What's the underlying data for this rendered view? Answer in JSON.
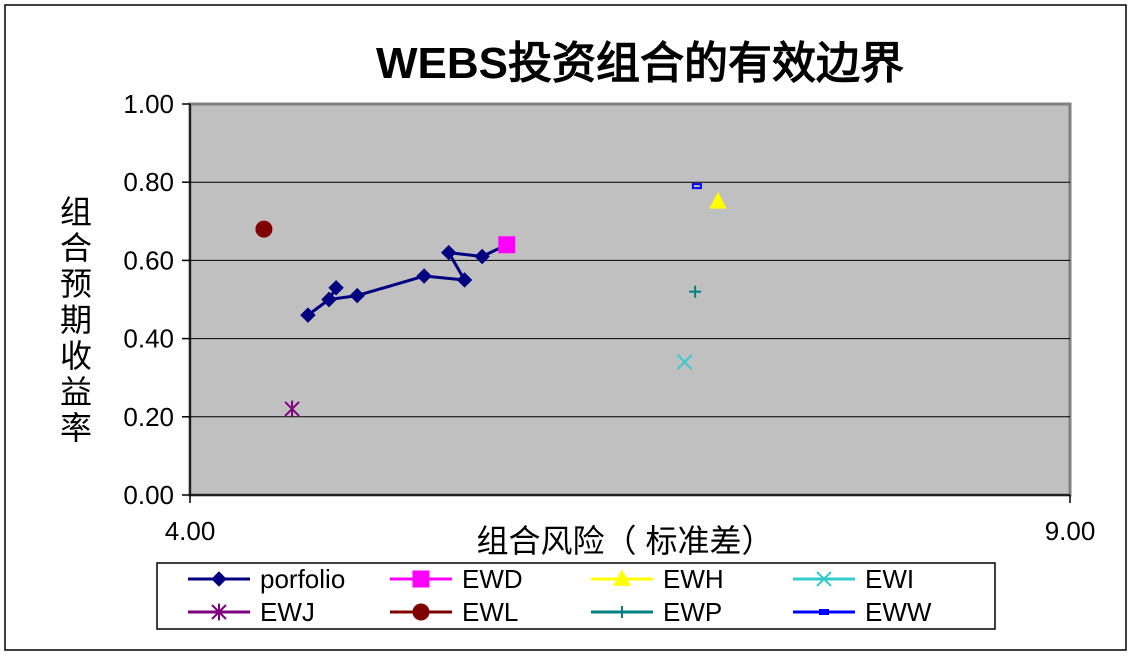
{
  "chart_data": {
    "type": "scatter",
    "title": "WEBS投资组合的有效边界",
    "xlabel": "组合风险（ 标准差）",
    "ylabel": "组合预期收益率",
    "xlim": [
      4.0,
      9.0
    ],
    "ylim": [
      0.0,
      1.0
    ],
    "x_tick_labels": [
      "4.00",
      "9.00"
    ],
    "y_tick_labels": [
      "0.00",
      "0.20",
      "0.40",
      "0.60",
      "0.80",
      "1.00"
    ],
    "grid": true,
    "legend_position": "bottom",
    "plot_background": "#c0c0c0",
    "series": [
      {
        "name": "porfolio",
        "kind": "line",
        "marker": "diamond",
        "color": "#000080",
        "points": [
          [
            4.67,
            0.46
          ],
          [
            4.79,
            0.5
          ],
          [
            4.83,
            0.53
          ],
          [
            4.79,
            0.5
          ],
          [
            4.95,
            0.51
          ],
          [
            5.33,
            0.56
          ],
          [
            5.56,
            0.55
          ],
          [
            5.47,
            0.62
          ],
          [
            5.66,
            0.61
          ],
          [
            5.8,
            0.64
          ]
        ]
      },
      {
        "name": "EWD",
        "kind": "point",
        "marker": "square",
        "color": "#ff00ff",
        "points": [
          [
            5.8,
            0.64
          ]
        ]
      },
      {
        "name": "EWH",
        "kind": "point",
        "marker": "triangle",
        "color": "#ffff00",
        "points": [
          [
            7.0,
            0.75
          ]
        ]
      },
      {
        "name": "EWI",
        "kind": "point",
        "marker": "x",
        "color": "#33cccc",
        "points": [
          [
            6.81,
            0.34
          ]
        ]
      },
      {
        "name": "EWJ",
        "kind": "point",
        "marker": "star",
        "color": "#800080",
        "points": [
          [
            4.58,
            0.22
          ]
        ]
      },
      {
        "name": "EWL",
        "kind": "point",
        "marker": "circle",
        "color": "#800000",
        "points": [
          [
            4.42,
            0.68
          ]
        ]
      },
      {
        "name": "EWP",
        "kind": "point",
        "marker": "plus",
        "color": "#008080",
        "points": [
          [
            6.87,
            0.52
          ]
        ]
      },
      {
        "name": "EWW",
        "kind": "point",
        "marker": "dash",
        "color": "#0000ff",
        "points": [
          [
            6.88,
            0.79
          ]
        ]
      }
    ]
  }
}
